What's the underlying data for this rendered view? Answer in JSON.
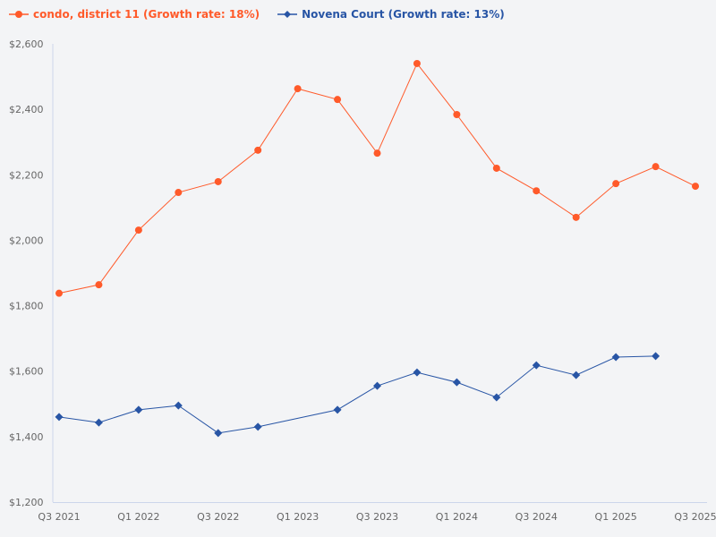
{
  "chart_data": {
    "type": "line",
    "title": "",
    "xlabel": "",
    "ylabel": "",
    "categories": [
      "Q3 2021",
      "Q4 2021",
      "Q1 2022",
      "Q2 2022",
      "Q3 2022",
      "Q4 2022",
      "Q1 2023",
      "Q2 2023",
      "Q3 2023",
      "Q4 2023",
      "Q1 2024",
      "Q2 2024",
      "Q3 2024",
      "Q4 2024",
      "Q1 2025",
      "Q2 2025",
      "Q3 2025"
    ],
    "x_tick_labels": [
      "Q3 2021",
      "Q1 2022",
      "Q3 2022",
      "Q1 2023",
      "Q3 2023",
      "Q1 2024",
      "Q3 2024",
      "Q1 2025",
      "Q3 2025"
    ],
    "y_tick_labels": [
      "$1,200",
      "$1,400",
      "$1,600",
      "$1,800",
      "$2,000",
      "$2,200",
      "$2,400",
      "$2,600"
    ],
    "ylim": [
      1200,
      2600
    ],
    "grid": false,
    "legend_position": "top-left",
    "series": [
      {
        "name": "condo, district 11 (Growth rate: 18%)",
        "color": "#ff5a2a",
        "marker": "circle",
        "values": [
          1838,
          1864,
          2031,
          2146,
          2179,
          2275,
          2463,
          2430,
          2266,
          2540,
          2384,
          2220,
          2151,
          2070,
          2173,
          2225,
          2165
        ]
      },
      {
        "name": "Novena Court (Growth rate: 13%)",
        "color": "#2855a5",
        "marker": "diamond",
        "values": [
          1460,
          1443,
          1482,
          1495,
          1411,
          1430,
          null,
          1482,
          1555,
          1596,
          1566,
          1520,
          1618,
          1588,
          1643,
          1646,
          null
        ]
      }
    ]
  }
}
